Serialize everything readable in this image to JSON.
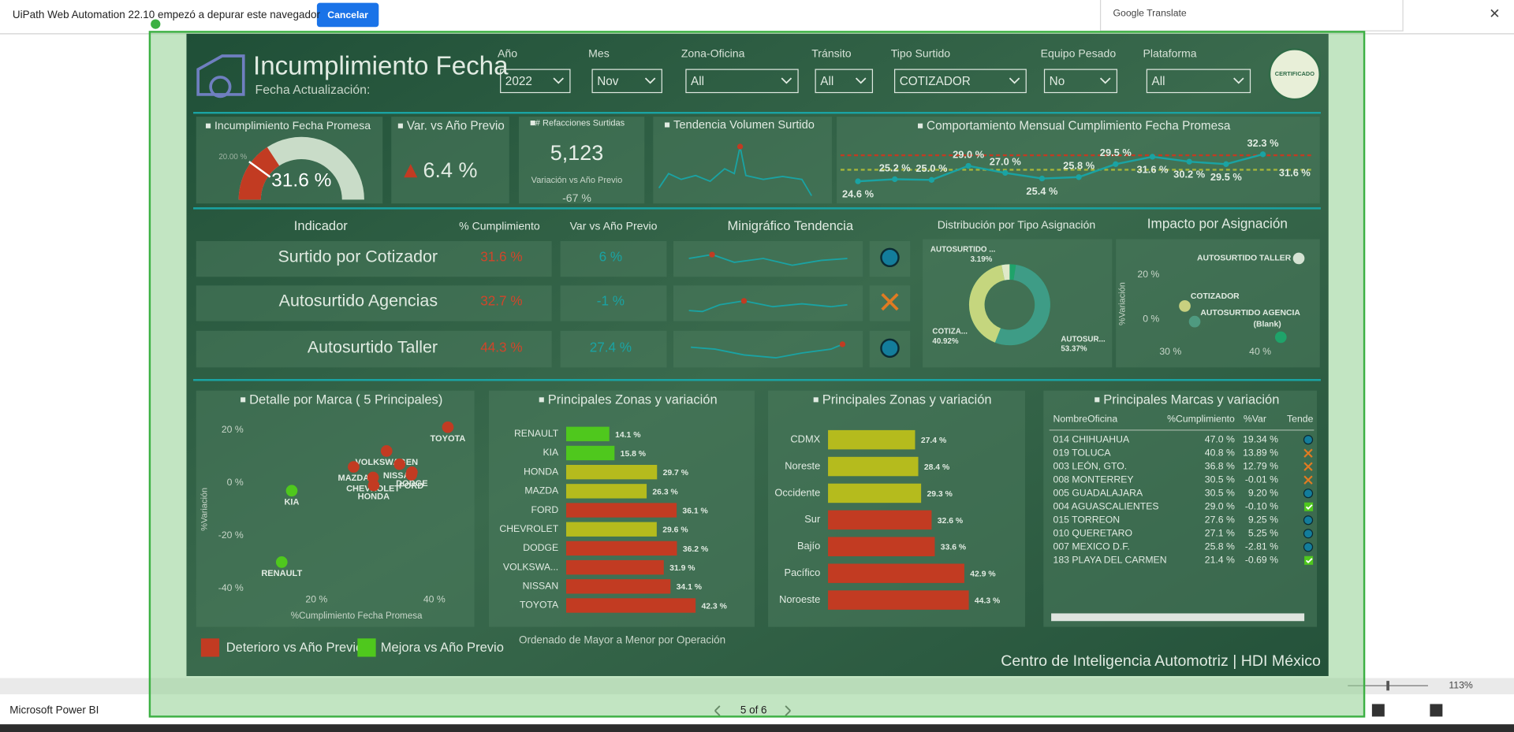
{
  "automation_bar": {
    "message": "UiPath Web Automation 22.10 empezó a depurar este navegador",
    "button": "Cancelar",
    "translate": "Google Translate"
  },
  "report": {
    "title": "Incumplimiento Fecha",
    "subtitle": "Fecha Actualización:",
    "badge": "CERTIFICADO",
    "filters": [
      {
        "label": "Año",
        "value": "2022"
      },
      {
        "label": "Mes",
        "value": "Nov"
      },
      {
        "label": "Zona-Oficina",
        "value": "All"
      },
      {
        "label": "Tránsito",
        "value": "All"
      },
      {
        "label": "Tipo Surtido",
        "value": "COTIZADOR"
      },
      {
        "label": "Equipo Pesado",
        "value": "No"
      },
      {
        "label": "Plataforma",
        "value": "All"
      }
    ],
    "gauge": {
      "title": "Incumplimiento Fecha Promesa",
      "value": 31.6,
      "value_label": "31.6 %",
      "target": 20,
      "target_label": "20.00 %"
    },
    "kpi_var": {
      "title": "Var. vs Año Previo",
      "value": 6.4,
      "value_label": "6.4 %"
    },
    "kpi_parts": {
      "title": "# Refacciones Surtidas",
      "value": "5,123",
      "sub_title": "Variación vs Año Previo",
      "sub_value": "-67 %"
    },
    "trend_volume": {
      "title": "Tendencia Volumen Surtido"
    },
    "monthly": {
      "type": "line",
      "title": "Comportamiento Mensual Cumplimiento Fecha Promesa",
      "values": [
        24.6,
        25.2,
        25.0,
        29.0,
        27.0,
        25.4,
        25.8,
        29.5,
        31.6,
        30.2,
        29.5,
        32.3
      ],
      "value_labels": [
        "24.6 %",
        "25.2 %",
        "25.0 %",
        "29.0 %",
        "27.0 %",
        "25.4 %",
        "25.8 %",
        "29.5 %",
        "31.6 %",
        "30.2 %",
        "29.5 %",
        "32.3 %"
      ],
      "reference_label": "31.6 %",
      "color": "#1aa3a3"
    },
    "indicators": {
      "headers": [
        "Indicador",
        "% Cumplimiento",
        "Var vs Año Previo",
        "Minigráfico Tendencia"
      ],
      "rows": [
        [
          "Surtido por Cotizador",
          "31.6 %",
          "6 %"
        ],
        [
          "Autosurtido Agencias",
          "32.7 %",
          "-1 %"
        ],
        [
          "Autosurtido Taller",
          "44.3 %",
          "27.4 %"
        ]
      ]
    },
    "donut": {
      "type": "pie",
      "title": "Distribución por Tipo Asignación",
      "slices": [
        {
          "label": "AUTOSUR...",
          "value": 53.37,
          "value_label": "53.37%",
          "color": "#3e9c86"
        },
        {
          "label": "COTIZA...",
          "value": 40.92,
          "value_label": "40.92%",
          "color": "#c5d67e"
        },
        {
          "label": "AUTOSURTIDO ...",
          "value": 3.19,
          "value_label": "3.19%",
          "color": "#dfe9c8"
        }
      ]
    },
    "impact": {
      "type": "scatter",
      "title": "Impacto por Asignación",
      "y_label": "%Variación",
      "xlim": [
        25,
        46
      ],
      "ylim": [
        -19,
        33
      ],
      "xticks": [
        {
          "value": 30,
          "label": "30 %"
        },
        {
          "value": 40,
          "label": "40 %"
        }
      ],
      "yticks": [
        {
          "value": 0,
          "label": "0 %"
        },
        {
          "value": 20,
          "label": "20 %"
        }
      ],
      "points": [
        {
          "label": "AUTOSURTIDO TALLER",
          "x": 44.3,
          "y": 27.4,
          "color": "#d5e2d3"
        },
        {
          "label": "COTIZADOR",
          "x": 31.6,
          "y": 6,
          "color": "#c8d080"
        },
        {
          "label": "AUTOSURTIDO AGENCIA",
          "x": 32.7,
          "y": -1,
          "color": "#4f9a80"
        },
        {
          "label": "(Blank)",
          "x": 42.3,
          "y": -8,
          "color": "#1fa36a"
        }
      ]
    },
    "brand_scatter": {
      "type": "scatter",
      "title": "Detalle por Marca ( 5 Principales)",
      "x_label": "%Cumplimiento Fecha Promesa",
      "y_label": "%Variación",
      "xlim": [
        4,
        45
      ],
      "ylim": [
        -45,
        25
      ],
      "xticks": [
        {
          "value": 20,
          "label": "20 %"
        },
        {
          "value": 40,
          "label": "40 %"
        }
      ],
      "yticks": [
        {
          "value": 20,
          "label": "20 %"
        },
        {
          "value": 0,
          "label": "0 %"
        },
        {
          "value": -20,
          "label": "-20 %"
        },
        {
          "value": -40,
          "label": "-40 %"
        }
      ],
      "series": [
        {
          "name": "Deterioro vs Año Previo",
          "color": "#c23b22",
          "points": [
            {
              "label": "TOYOTA",
              "x": 42.3,
              "y": 21
            },
            {
              "label": "VOLKSWAGEN",
              "x": 31.9,
              "y": 12
            },
            {
              "label": "MAZDA",
              "x": 26.3,
              "y": 6
            },
            {
              "label": "NISSAN",
              "x": 34.1,
              "y": 7
            },
            {
              "label": "DODGE",
              "x": 36.2,
              "y": 4
            },
            {
              "label": "CHEVROLET",
              "x": 29.6,
              "y": 2
            },
            {
              "label": "FORD",
              "x": 36.1,
              "y": 3
            },
            {
              "label": "HONDA",
              "x": 29.7,
              "y": -1
            }
          ]
        },
        {
          "name": "Mejora vs Año Previo",
          "color": "#4fc81d",
          "points": [
            {
              "label": "KIA",
              "x": 15.8,
              "y": -3
            },
            {
              "label": "RENAULT",
              "x": 14.1,
              "y": -30
            }
          ]
        }
      ]
    },
    "brand_bars": {
      "type": "bar",
      "title": "Principales Zonas y variación",
      "categories": [
        "RENAULT",
        "KIA",
        "HONDA",
        "MAZDA",
        "FORD",
        "CHEVROLET",
        "DODGE",
        "VOLKSWA...",
        "NISSAN",
        "TOYOTA"
      ],
      "values": [
        14.1,
        15.8,
        29.7,
        26.3,
        36.1,
        29.6,
        36.2,
        31.9,
        34.1,
        42.3
      ],
      "value_labels": [
        "14.1 %",
        "15.8 %",
        "29.7 %",
        "26.3 %",
        "36.1 %",
        "29.6 %",
        "36.2 %",
        "31.9 %",
        "34.1 %",
        "42.3 %"
      ],
      "colors": [
        "#4fc81d",
        "#4fc81d",
        "#b5bb1d",
        "#b5bb1d",
        "#c23b22",
        "#b5bb1d",
        "#c23b22",
        "#c23b22",
        "#c23b22",
        "#c23b22"
      ],
      "xlim": [
        0,
        48
      ],
      "note": "Ordenado de Mayor a Menor por Operación"
    },
    "zone_bars": {
      "type": "bar",
      "title": "Principales Zonas y variación",
      "categories": [
        "CDMX",
        "Noreste",
        "Occidente",
        "Sur",
        "Bajío",
        "Pacífico",
        "Noroeste"
      ],
      "values": [
        27.4,
        28.4,
        29.3,
        32.6,
        33.6,
        42.9,
        44.3
      ],
      "value_labels": [
        "27.4 %",
        "28.4 %",
        "29.3 %",
        "32.6 %",
        "33.6 %",
        "42.9 %",
        "44.3 %"
      ],
      "colors": [
        "#b5bb1d",
        "#b5bb1d",
        "#b5bb1d",
        "#c23b22",
        "#c23b22",
        "#c23b22",
        "#c23b22"
      ],
      "xlim": [
        0,
        45
      ]
    },
    "brand_table": {
      "title": "Principales Marcas y variación",
      "headers": [
        "NombreOficina",
        "%Cumplimiento",
        "%Var",
        "Tende"
      ],
      "rows": [
        [
          "014 CHIHUAHUA",
          "47.0 %",
          "19.34 %"
        ],
        [
          "019 TOLUCA",
          "40.8 %",
          "13.89 %"
        ],
        [
          "003 LEÓN, GTO.",
          "36.8 %",
          "12.79 %"
        ],
        [
          "008 MONTERREY",
          "30.5 %",
          "-0.01 %"
        ],
        [
          "005 GUADALAJARA",
          "30.5 %",
          "9.20 %"
        ],
        [
          "004 AGUASCALIENTES",
          "29.0 %",
          "-0.10 %"
        ],
        [
          "015 TORREON",
          "27.6 %",
          "9.25 %"
        ],
        [
          "010 QUERETARO",
          "27.1 %",
          "5.25 %"
        ],
        [
          "007 MEXICO D.F.",
          "25.8 %",
          "-2.81 %"
        ],
        [
          "183 PLAYA DEL CARMEN",
          "21.4 %",
          "-0.69 %"
        ]
      ]
    },
    "footer": "Centro de Inteligencia Automotriz | HDI México"
  },
  "powerbi_bar": {
    "app": "Microsoft Power BI",
    "page": "5 of 6",
    "zoom": "113%"
  }
}
